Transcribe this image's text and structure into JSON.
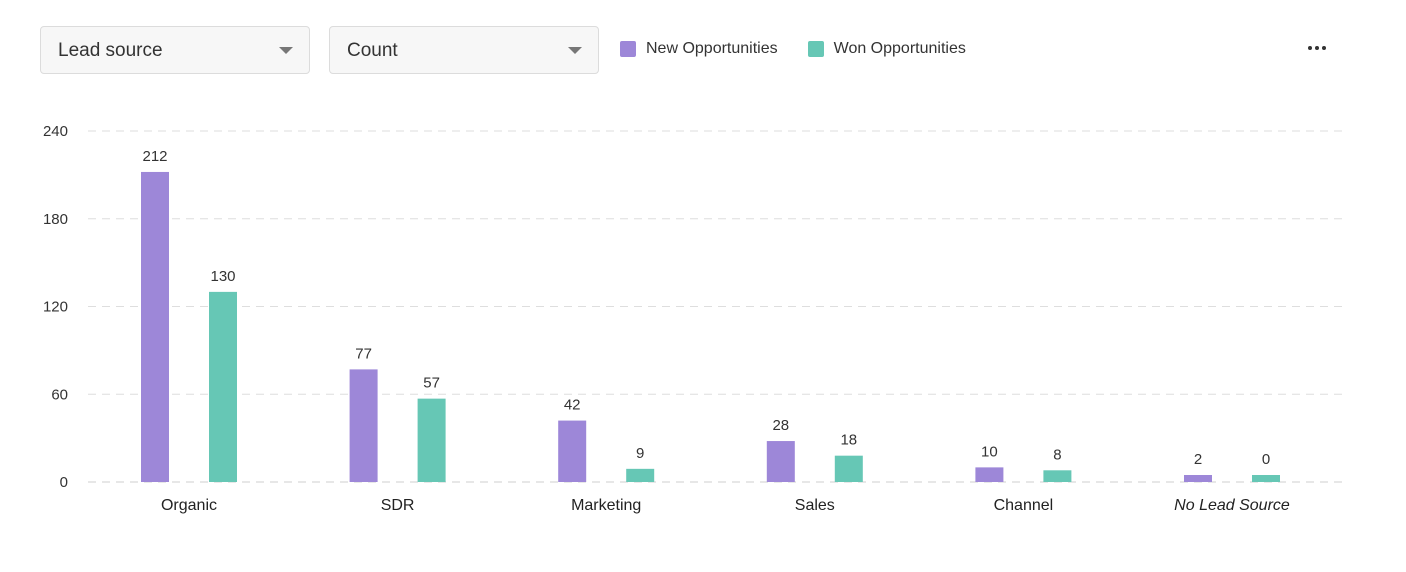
{
  "controls": {
    "group_by": {
      "value": "Lead source"
    },
    "measure": {
      "value": "Count"
    }
  },
  "chart_data": {
    "type": "bar",
    "categories": [
      "Organic",
      "SDR",
      "Marketing",
      "Sales",
      "Channel",
      "No Lead Source"
    ],
    "italic_categories": [
      "No Lead Source"
    ],
    "series": [
      {
        "name": "New Opportunities",
        "color": "#9d87d8",
        "values": [
          212,
          77,
          42,
          28,
          10,
          2
        ]
      },
      {
        "name": "Won Opportunities",
        "color": "#66c7b5",
        "values": [
          130,
          57,
          9,
          18,
          8,
          0
        ]
      }
    ],
    "ylim": [
      0,
      240
    ],
    "yticks": [
      0,
      60,
      120,
      180,
      240
    ],
    "grid": true,
    "legend_position": "top"
  }
}
